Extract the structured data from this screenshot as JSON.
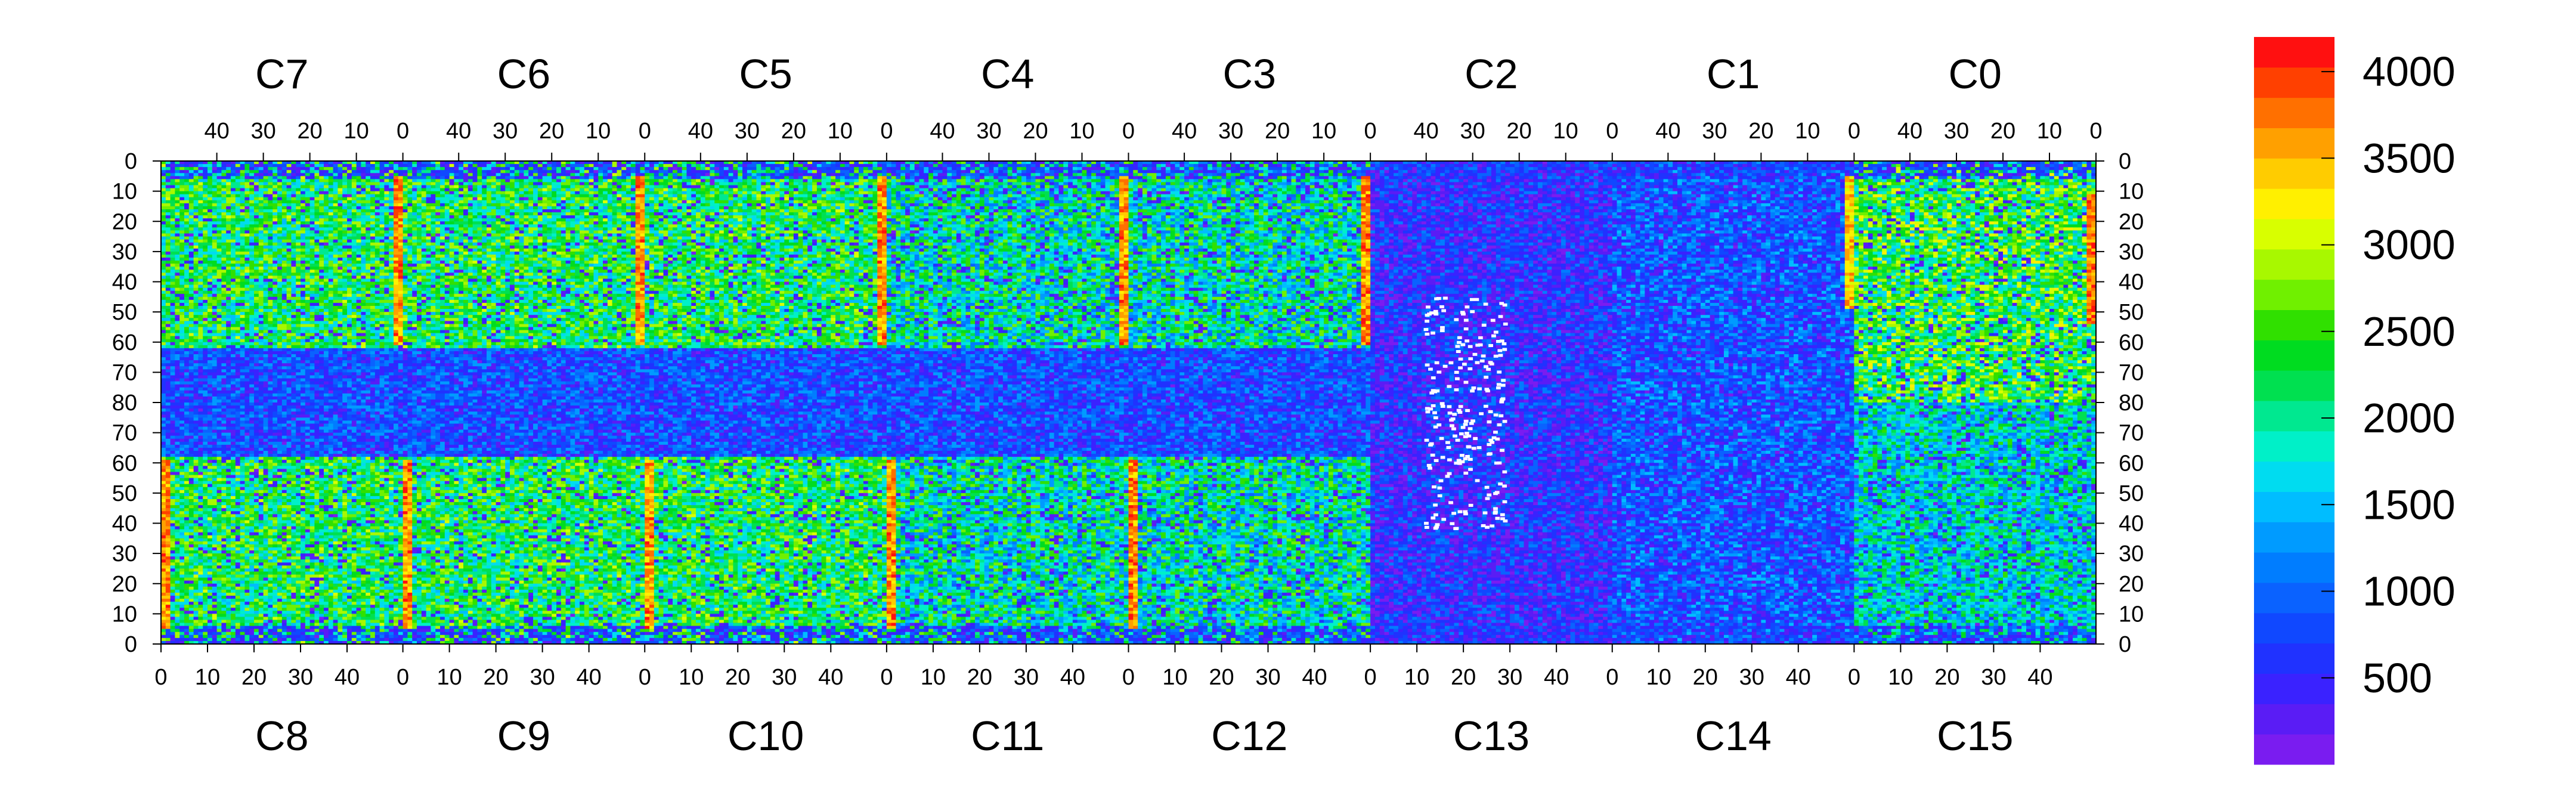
{
  "chart_data": {
    "type": "heatmap",
    "title": "",
    "xlabel": "",
    "ylabel": "",
    "chips_top": [
      "C7",
      "C6",
      "C5",
      "C4",
      "C3",
      "C2",
      "C1",
      "C0"
    ],
    "chips_bottom": [
      "C8",
      "C9",
      "C10",
      "C11",
      "C12",
      "C13",
      "C14",
      "C15"
    ],
    "top_axis_ticks": [
      "40",
      "30",
      "20",
      "10",
      "0"
    ],
    "bottom_axis_ticks": [
      "0",
      "10",
      "20",
      "30",
      "40"
    ],
    "left_axis_ticks": [
      "0",
      "10",
      "20",
      "30",
      "40",
      "50",
      "60",
      "70",
      "80",
      "70",
      "60",
      "50",
      "40",
      "30",
      "20",
      "10",
      "0"
    ],
    "right_axis_ticks": [
      "0",
      "10",
      "20",
      "30",
      "40",
      "50",
      "60",
      "70",
      "80",
      "70",
      "60",
      "50",
      "40",
      "30",
      "20",
      "10",
      "0"
    ],
    "columns_per_chip": 52,
    "rows_per_half": 80,
    "colorbar": {
      "zmin": 0,
      "zmax": 4200,
      "tick_values": [
        500,
        1000,
        1500,
        2000,
        2500,
        3000,
        3500,
        4000
      ],
      "tick_labels": [
        "500",
        "1000",
        "1500",
        "2000",
        "2500",
        "3000",
        "3500",
        "4000"
      ],
      "colors": [
        "#7a1cf0",
        "#5a1cf5",
        "#3a22ff",
        "#2032ff",
        "#1048ff",
        "#0a62ff",
        "#007dff",
        "#009bff",
        "#00bdff",
        "#00dcf0",
        "#00f0c8",
        "#00e890",
        "#00e050",
        "#00dc20",
        "#30e000",
        "#70f000",
        "#a8f800",
        "#d8ff00",
        "#fff000",
        "#ffcc00",
        "#ffa000",
        "#ff7000",
        "#ff4000",
        "#ff1010"
      ]
    },
    "regions": [
      {
        "chip": "C7",
        "level_range": [
          1500,
          3000
        ]
      },
      {
        "chip": "C6",
        "level_range": [
          1500,
          3000
        ]
      },
      {
        "chip": "C5",
        "level_range": [
          1500,
          3000
        ]
      },
      {
        "chip": "C4",
        "level_range": [
          1000,
          2800
        ]
      },
      {
        "chip": "C3",
        "level_range": [
          1000,
          2800
        ]
      },
      {
        "chip": "C2",
        "level_range": [
          0,
          1200
        ]
      },
      {
        "chip": "C1",
        "level_range": [
          300,
          1500
        ]
      },
      {
        "chip": "C0",
        "level_range": [
          1500,
          3200
        ]
      },
      {
        "chip": "C8",
        "level_range": [
          1500,
          3000
        ]
      },
      {
        "chip": "C9",
        "level_range": [
          1500,
          3000
        ]
      },
      {
        "chip": "C10",
        "level_range": [
          1500,
          3000
        ]
      },
      {
        "chip": "C11",
        "level_range": [
          1000,
          2800
        ]
      },
      {
        "chip": "C12",
        "level_range": [
          1000,
          2800
        ]
      },
      {
        "chip": "C13",
        "level_range": [
          0,
          1200
        ]
      },
      {
        "chip": "C14",
        "level_range": [
          300,
          1500
        ]
      },
      {
        "chip": "C15",
        "level_range": [
          1000,
          2500
        ]
      }
    ],
    "hot_columns": [
      {
        "boundary": "C7/C6",
        "level": 3900
      },
      {
        "boundary": "C6/C5",
        "level": 3900
      },
      {
        "boundary": "C5/C4",
        "level": 3800
      },
      {
        "boundary": "C4/C3",
        "level": 3800
      },
      {
        "boundary": "C3/C2",
        "level": 3800
      },
      {
        "boundary": "C1/C0",
        "level": 3600
      },
      {
        "boundary": "C0 right edge",
        "level": 4000
      }
    ],
    "grid": false
  }
}
